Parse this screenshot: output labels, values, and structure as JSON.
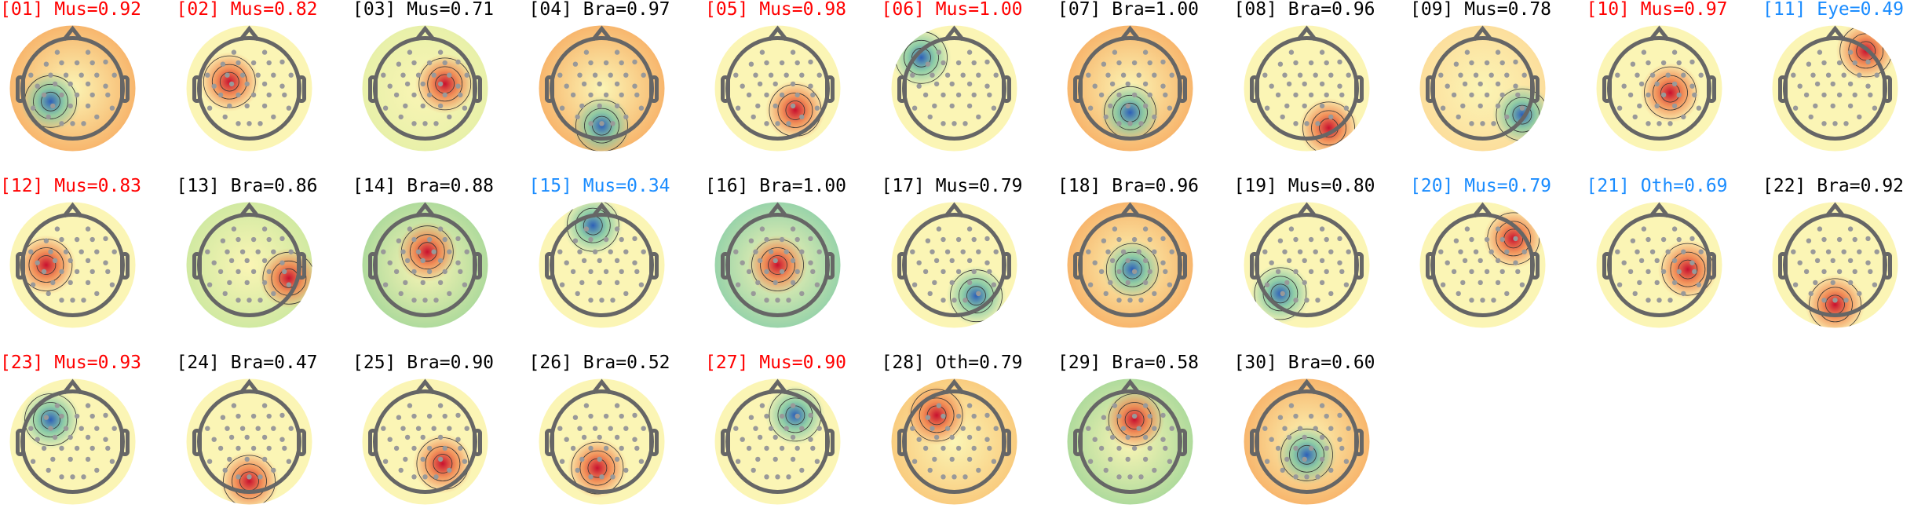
{
  "colors": {
    "high_confidence": "#ff0000",
    "normal": "#000000",
    "low_confidence": "#1a8cff"
  },
  "components": [
    {
      "label": "[01] Mus=0.92",
      "status": "high_confidence"
    },
    {
      "label": "[02] Mus=0.82",
      "status": "high_confidence"
    },
    {
      "label": "[03] Mus=0.71",
      "status": "normal"
    },
    {
      "label": "[04] Bra=0.97",
      "status": "normal"
    },
    {
      "label": "[05] Mus=0.98",
      "status": "high_confidence"
    },
    {
      "label": "[06] Mus=1.00",
      "status": "high_confidence"
    },
    {
      "label": "[07] Bra=1.00",
      "status": "normal"
    },
    {
      "label": "[08] Bra=0.96",
      "status": "normal"
    },
    {
      "label": "[09] Mus=0.78",
      "status": "normal"
    },
    {
      "label": "[10] Mus=0.97",
      "status": "high_confidence"
    },
    {
      "label": "[11] Eye=0.49",
      "status": "low_confidence"
    },
    {
      "label": "[12] Mus=0.83",
      "status": "high_confidence"
    },
    {
      "label": "[13] Bra=0.86",
      "status": "normal"
    },
    {
      "label": "[14] Bra=0.88",
      "status": "normal"
    },
    {
      "label": "[15] Mus=0.34",
      "status": "low_confidence"
    },
    {
      "label": "[16] Bra=1.00",
      "status": "normal"
    },
    {
      "label": "[17] Mus=0.79",
      "status": "normal"
    },
    {
      "label": "[18] Bra=0.96",
      "status": "normal"
    },
    {
      "label": "[19] Mus=0.80",
      "status": "normal"
    },
    {
      "label": "[20] Mus=0.79",
      "status": "low_confidence"
    },
    {
      "label": "[21] Oth=0.69",
      "status": "low_confidence"
    },
    {
      "label": "[22] Bra=0.92",
      "status": "normal"
    },
    {
      "label": "[23] Mus=0.93",
      "status": "high_confidence"
    },
    {
      "label": "[24] Bra=0.47",
      "status": "normal"
    },
    {
      "label": "[25] Bra=0.90",
      "status": "normal"
    },
    {
      "label": "[26] Bra=0.52",
      "status": "normal"
    },
    {
      "label": "[27] Mus=0.90",
      "status": "high_confidence"
    },
    {
      "label": "[28] Oth=0.79",
      "status": "normal"
    },
    {
      "label": "[29] Bra=0.58",
      "status": "normal"
    },
    {
      "label": "[30] Bra=0.60",
      "status": "normal"
    }
  ]
}
